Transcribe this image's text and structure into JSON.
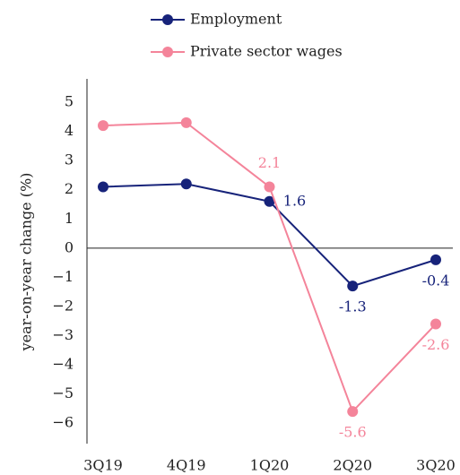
{
  "chart_data": {
    "type": "line",
    "y_label": "year-on-year change (%)",
    "categories": [
      "3Q19",
      "4Q19",
      "1Q20",
      "2Q20",
      "3Q20"
    ],
    "series": [
      {
        "name": "Employment",
        "color": "#17237a",
        "values": [
          2.1,
          2.2,
          1.6,
          -1.3,
          -0.4
        ],
        "value_labels": [
          null,
          null,
          "1.6",
          "-1.3",
          "-0.4"
        ]
      },
      {
        "name": "Private sector wages",
        "color": "#f4849a",
        "values": [
          4.2,
          4.3,
          2.1,
          -5.6,
          -2.6
        ],
        "value_labels": [
          null,
          null,
          "2.1",
          "-5.6",
          "-2.6"
        ]
      }
    ],
    "ylim": [
      -6.7,
      5.8
    ],
    "yticks": [
      {
        "value": -6,
        "label": "−6"
      },
      {
        "value": -5,
        "label": "−5"
      },
      {
        "value": -4,
        "label": "−4"
      },
      {
        "value": -3,
        "label": "−3"
      },
      {
        "value": -2,
        "label": "−2"
      },
      {
        "value": -1,
        "label": "−1"
      },
      0,
      1,
      2,
      3,
      4,
      5
    ],
    "zero_line": true,
    "legend": "top"
  }
}
